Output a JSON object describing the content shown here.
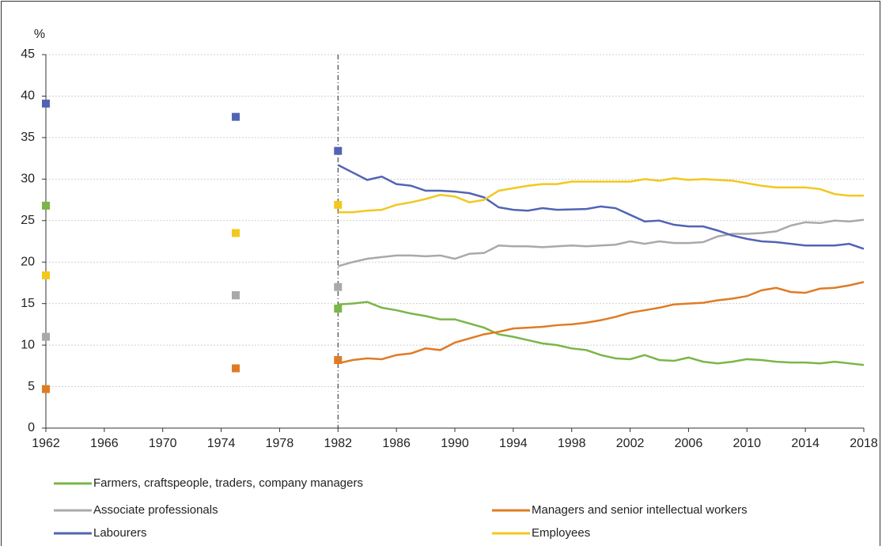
{
  "chart_data": {
    "type": "line",
    "y_unit": "%",
    "xlim": [
      1962,
      2018
    ],
    "xticks": [
      1962,
      1966,
      1970,
      1974,
      1978,
      1982,
      1986,
      1990,
      1994,
      1998,
      2002,
      2006,
      2010,
      2014,
      2018
    ],
    "ylim": [
      0,
      45
    ],
    "yticks": [
      0,
      5,
      10,
      15,
      20,
      25,
      30,
      35,
      40,
      45
    ],
    "grid": true,
    "reference_x": 1982,
    "marker_x": [
      1962,
      1975,
      1982
    ],
    "x": [
      1982,
      1983,
      1984,
      1985,
      1986,
      1987,
      1988,
      1989,
      1990,
      1991,
      1992,
      1993,
      1994,
      1995,
      1996,
      1997,
      1998,
      1999,
      2000,
      2001,
      2002,
      2003,
      2004,
      2005,
      2006,
      2007,
      2008,
      2009,
      2010,
      2011,
      2012,
      2013,
      2014,
      2015,
      2016,
      2017,
      2018
    ],
    "series": [
      {
        "name": "Farmers, craftspeople, traders, company managers",
        "color": "#7ab648",
        "marker_values": [
          26.8,
          16.0,
          14.4
        ],
        "values": [
          14.9,
          15.0,
          15.2,
          14.5,
          14.2,
          13.8,
          13.5,
          13.1,
          13.1,
          12.6,
          12.1,
          11.3,
          11.0,
          10.6,
          10.2,
          10.0,
          9.6,
          9.4,
          8.8,
          8.4,
          8.3,
          8.8,
          8.2,
          8.1,
          8.5,
          8.0,
          7.8,
          8.0,
          8.3,
          8.2,
          8.0,
          7.9,
          7.9,
          7.8,
          8.0,
          7.8,
          7.6
        ]
      },
      {
        "name": "Associate professionals",
        "color": "#a9a9a9",
        "marker_values": [
          11.0,
          16.0,
          17.0
        ],
        "values": [
          19.5,
          20.0,
          20.4,
          20.6,
          20.8,
          20.8,
          20.7,
          20.8,
          20.4,
          21.0,
          21.1,
          22.0,
          21.9,
          21.9,
          21.8,
          21.9,
          22.0,
          21.9,
          22.0,
          22.1,
          22.5,
          22.2,
          22.5,
          22.3,
          22.3,
          22.4,
          23.1,
          23.4,
          23.4,
          23.5,
          23.7,
          24.4,
          24.8,
          24.7,
          25.0,
          24.9,
          25.1
        ]
      },
      {
        "name": "Managers and senior intellectual workers",
        "color": "#e07b25",
        "marker_values": [
          4.7,
          7.2,
          8.2
        ],
        "values": [
          7.8,
          8.2,
          8.4,
          8.3,
          8.8,
          9.0,
          9.6,
          9.4,
          10.3,
          10.8,
          11.3,
          11.6,
          12.0,
          12.1,
          12.2,
          12.4,
          12.5,
          12.7,
          13.0,
          13.4,
          13.9,
          14.2,
          14.5,
          14.9,
          15.0,
          15.1,
          15.4,
          15.6,
          15.9,
          16.6,
          16.9,
          16.4,
          16.3,
          16.8,
          16.9,
          17.2,
          17.6
        ]
      },
      {
        "name": "Labourers",
        "color": "#5164b4",
        "marker_values": [
          39.1,
          37.5,
          33.4
        ],
        "values": [
          31.7,
          30.8,
          29.9,
          30.3,
          29.4,
          29.2,
          28.6,
          28.6,
          28.5,
          28.3,
          27.8,
          26.6,
          26.3,
          26.2,
          26.5,
          26.3,
          26.35,
          26.4,
          26.7,
          26.5,
          25.7,
          24.9,
          25.0,
          24.5,
          24.3,
          24.3,
          23.8,
          23.2,
          22.8,
          22.5,
          22.4,
          22.2,
          22.0,
          22.0,
          22.0,
          22.2,
          21.6
        ]
      },
      {
        "name": "Employees",
        "color": "#f2c81d",
        "marker_values": [
          18.4,
          23.5,
          26.9
        ],
        "values": [
          26.0,
          26.0,
          26.2,
          26.3,
          26.9,
          27.2,
          27.6,
          28.1,
          27.9,
          27.2,
          27.5,
          28.6,
          28.9,
          29.2,
          29.4,
          29.4,
          29.7,
          29.7,
          29.7,
          29.7,
          29.7,
          30.0,
          29.8,
          30.1,
          29.9,
          30.0,
          29.9,
          29.8,
          29.5,
          29.2,
          29.0,
          29.0,
          29.0,
          28.8,
          28.2,
          28.0,
          28.0
        ]
      }
    ]
  }
}
